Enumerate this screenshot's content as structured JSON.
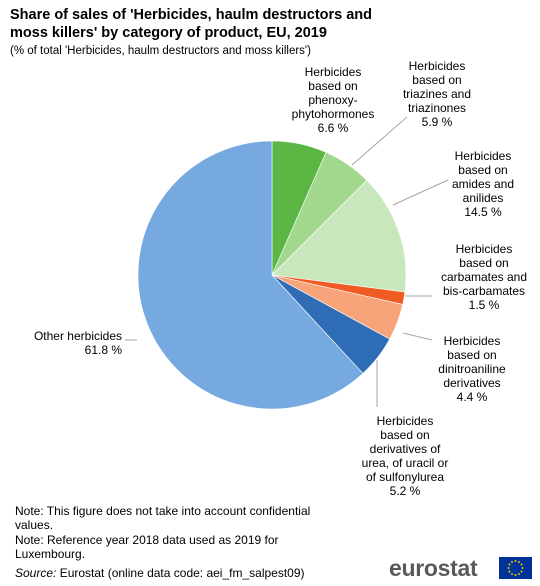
{
  "title": "Share of sales of 'Herbicides, haulm destructors and moss killers' by category of product, EU, 2019",
  "subtitle": "(% of total 'Herbicides,  haulm destructors and moss killers')",
  "chart_data": {
    "type": "pie",
    "title": "Share of sales of 'Herbicides, haulm destructors and moss killers' by category of product, EU, 2019",
    "unit": "%",
    "slices": [
      {
        "name": "Herbicides based on phenoxy-phytohormones",
        "value": 6.6,
        "label_lines": [
          "Herbicides",
          "based on",
          "phenoxy-",
          "phytohormones"
        ],
        "value_label": "6.6 %",
        "color": "#5cb644"
      },
      {
        "name": "Herbicides based on triazines and triazinones",
        "value": 5.9,
        "label_lines": [
          "Herbicides",
          "based on",
          "triazines and",
          "triazinones"
        ],
        "value_label": "5.9 %",
        "color": "#a2d88e"
      },
      {
        "name": "Herbicides based on amides and anilides",
        "value": 14.5,
        "label_lines": [
          "Herbicides",
          "based on",
          "amides and",
          "anilides"
        ],
        "value_label": "14.5 %",
        "color": "#c9e7bc"
      },
      {
        "name": "Herbicides based on carbamates and bis-carbamates",
        "value": 1.5,
        "label_lines": [
          "Herbicides",
          "based on",
          "carbamates and",
          "bis-carbamates"
        ],
        "value_label": "1.5 %",
        "color": "#f05a23"
      },
      {
        "name": "Herbicides based on dinitroaniline derivatives",
        "value": 4.4,
        "label_lines": [
          "Herbicides",
          "based on",
          "dinitroaniline",
          "derivatives"
        ],
        "value_label": "4.4 %",
        "color": "#f7a47b"
      },
      {
        "name": "Herbicides based on derivatives of urea, of uracil or of sulfonylurea",
        "value": 5.2,
        "label_lines": [
          "Herbicides",
          "based on",
          "derivatives  of",
          "urea, of uracil or",
          "of sulfonylurea"
        ],
        "value_label": "5.2 %",
        "color": "#2f6cb6"
      },
      {
        "name": "Other herbicides",
        "value": 61.8,
        "label_lines": [
          "Other herbicides"
        ],
        "value_label": "61.8 %",
        "color": "#76a9e0"
      }
    ]
  },
  "notes": {
    "note1": "Note: This figure  does not take into account confidential values.",
    "note2": "Note: Reference  year 2018 data used as 2019 for Luxembourg."
  },
  "source": {
    "label": "Source:",
    "text": " Eurostat (online data code: aei_fm_salpest09)"
  },
  "logo": {
    "text": "eurostat",
    "flag_color": "#003399",
    "star_color": "#ffcc00"
  }
}
